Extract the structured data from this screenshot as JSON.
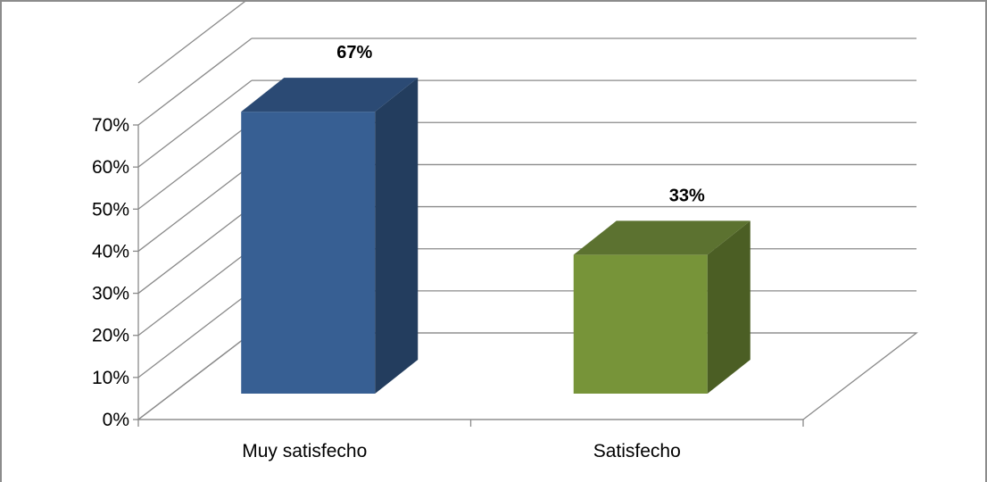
{
  "chart_data": {
    "type": "bar",
    "style": "3d-column",
    "categories": [
      "Muy satisfecho",
      "Satisfecho"
    ],
    "values": [
      67,
      33
    ],
    "data_labels": [
      "67%",
      "33%"
    ],
    "colors": [
      "#375f93",
      "#779439"
    ],
    "side_colors": [
      "#233d5e",
      "#4b5e24"
    ],
    "top_colors": [
      "#2b4a74",
      "#5c7230"
    ],
    "ylim": [
      0,
      70
    ],
    "yticks": [
      0,
      10,
      20,
      30,
      40,
      50,
      60,
      70
    ],
    "ytick_labels": [
      "0%",
      "10%",
      "20%",
      "30%",
      "40%",
      "50%",
      "60%",
      "70%"
    ],
    "grid": true,
    "legend": "none",
    "title": "",
    "xlabel": "",
    "ylabel": ""
  }
}
